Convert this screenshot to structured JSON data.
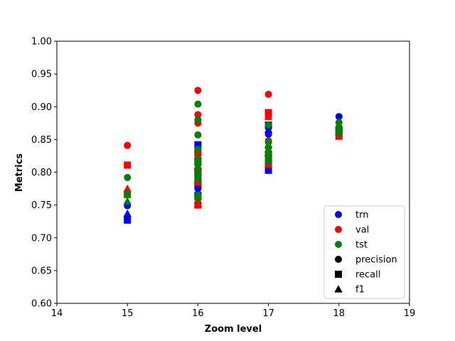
{
  "chart_data": {
    "type": "scatter",
    "xlabel": "Zoom level",
    "ylabel": "Metrics",
    "xlim": [
      14,
      19
    ],
    "ylim": [
      0.6,
      1.0
    ],
    "xticks": [
      "14",
      "15",
      "16",
      "17",
      "18",
      "19"
    ],
    "yticks": [
      "0.60",
      "0.65",
      "0.70",
      "0.75",
      "0.80",
      "0.85",
      "0.90",
      "0.95",
      "1.00"
    ],
    "grid": false,
    "legend_position": "lower-right",
    "colors": {
      "trn": "#0000ff",
      "val": "#ff0000",
      "tst": "#008000",
      "marker_key": "#000000"
    },
    "legend": [
      {
        "label": "trn",
        "color": "#0000ff",
        "marker": "circle"
      },
      {
        "label": "val",
        "color": "#ff0000",
        "marker": "circle"
      },
      {
        "label": "tst",
        "color": "#008000",
        "marker": "circle"
      },
      {
        "label": "precision",
        "color": "#000000",
        "marker": "circle"
      },
      {
        "label": "recall",
        "color": "#000000",
        "marker": "square"
      },
      {
        "label": "f1",
        "color": "#000000",
        "marker": "triangle"
      }
    ],
    "series": [
      {
        "split": "trn",
        "metric": "precision",
        "marker": "circle",
        "points": [
          [
            15,
            0.749
          ],
          [
            16,
            0.775
          ],
          [
            16,
            0.79
          ],
          [
            16,
            0.805
          ],
          [
            16,
            0.82
          ],
          [
            16,
            0.835
          ],
          [
            17,
            0.858
          ],
          [
            17,
            0.868
          ],
          [
            18,
            0.885
          ]
        ]
      },
      {
        "split": "trn",
        "metric": "recall",
        "marker": "square",
        "points": [
          [
            15,
            0.727
          ],
          [
            16,
            0.765
          ],
          [
            16,
            0.78
          ],
          [
            16,
            0.8
          ],
          [
            16,
            0.815
          ],
          [
            16,
            0.83
          ],
          [
            16,
            0.842
          ],
          [
            17,
            0.803
          ],
          [
            17,
            0.872
          ],
          [
            18,
            0.86
          ]
        ]
      },
      {
        "split": "trn",
        "metric": "f1",
        "marker": "triangle",
        "points": [
          [
            15,
            0.737
          ],
          [
            16,
            0.752
          ],
          [
            16,
            0.77
          ],
          [
            16,
            0.787
          ],
          [
            16,
            0.808
          ],
          [
            17,
            0.83
          ],
          [
            17,
            0.865
          ],
          [
            18,
            0.872
          ]
        ]
      },
      {
        "split": "val",
        "metric": "precision",
        "marker": "circle",
        "points": [
          [
            15,
            0.841
          ],
          [
            16,
            0.925
          ],
          [
            16,
            0.888
          ],
          [
            16,
            0.875
          ],
          [
            16,
            0.82
          ],
          [
            17,
            0.919
          ],
          [
            17,
            0.885
          ],
          [
            17,
            0.848
          ],
          [
            18,
            0.865
          ]
        ]
      },
      {
        "split": "val",
        "metric": "recall",
        "marker": "square",
        "points": [
          [
            15,
            0.811
          ],
          [
            16,
            0.75
          ],
          [
            16,
            0.785
          ],
          [
            16,
            0.8
          ],
          [
            16,
            0.83
          ],
          [
            17,
            0.891
          ],
          [
            17,
            0.812
          ],
          [
            18,
            0.855
          ]
        ]
      },
      {
        "split": "val",
        "metric": "f1",
        "marker": "triangle",
        "points": [
          [
            15,
            0.775
          ],
          [
            16,
            0.757
          ],
          [
            16,
            0.81
          ],
          [
            16,
            0.826
          ],
          [
            17,
            0.885
          ],
          [
            17,
            0.835
          ],
          [
            18,
            0.862
          ]
        ]
      },
      {
        "split": "tst",
        "metric": "precision",
        "marker": "circle",
        "points": [
          [
            15,
            0.792
          ],
          [
            16,
            0.904
          ],
          [
            16,
            0.88
          ],
          [
            16,
            0.857
          ],
          [
            16,
            0.835
          ],
          [
            16,
            0.82
          ],
          [
            16,
            0.8
          ],
          [
            16,
            0.765
          ],
          [
            17,
            0.872
          ],
          [
            17,
            0.846
          ],
          [
            17,
            0.838
          ],
          [
            17,
            0.825
          ],
          [
            18,
            0.876
          ],
          [
            18,
            0.86
          ]
        ]
      },
      {
        "split": "tst",
        "metric": "recall",
        "marker": "square",
        "points": [
          [
            15,
            0.766
          ],
          [
            16,
            0.815
          ],
          [
            16,
            0.795
          ],
          [
            16,
            0.762
          ],
          [
            17,
            0.828
          ],
          [
            17,
            0.818
          ],
          [
            18,
            0.866
          ]
        ]
      },
      {
        "split": "tst",
        "metric": "f1",
        "marker": "triangle",
        "points": [
          [
            15,
            0.756
          ],
          [
            16,
            0.79
          ],
          [
            16,
            0.81
          ],
          [
            17,
            0.842
          ],
          [
            18,
            0.868
          ]
        ]
      }
    ]
  }
}
